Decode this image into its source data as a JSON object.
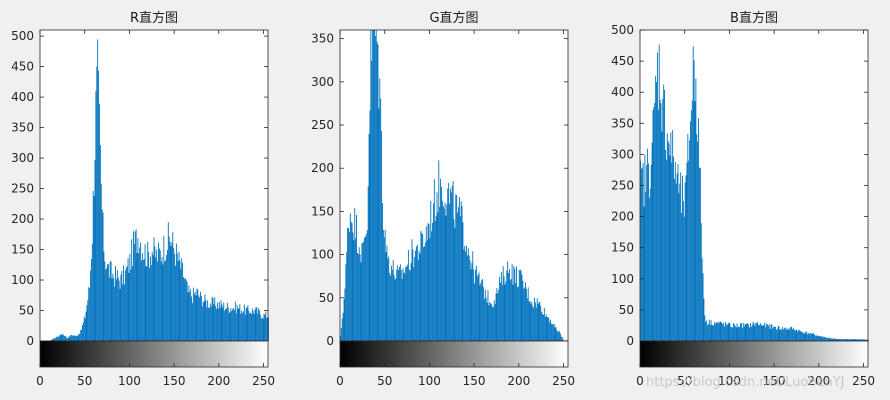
{
  "chart_data": [
    {
      "type": "bar",
      "title": "R直方图",
      "xlabel": "",
      "ylabel": "",
      "xlim": [
        0,
        255
      ],
      "ylim": [
        0,
        510
      ],
      "yticks": [
        0,
        50,
        100,
        150,
        200,
        250,
        300,
        350,
        400,
        450,
        500
      ],
      "xticks": [
        0,
        50,
        100,
        150,
        200,
        250
      ],
      "bar_color": "#0072BD",
      "bins": [
        0,
        10,
        20,
        25,
        30,
        35,
        40,
        45,
        50,
        55,
        58,
        60,
        62,
        64,
        66,
        68,
        70,
        72,
        75,
        80,
        85,
        90,
        95,
        100,
        105,
        110,
        115,
        120,
        125,
        130,
        135,
        140,
        145,
        150,
        155,
        160,
        165,
        170,
        175,
        180,
        185,
        190,
        200,
        210,
        220,
        230,
        240,
        250,
        255
      ],
      "values": [
        0,
        0,
        8,
        12,
        5,
        10,
        8,
        15,
        40,
        90,
        180,
        280,
        380,
        430,
        350,
        250,
        180,
        140,
        120,
        110,
        105,
        100,
        110,
        130,
        160,
        175,
        150,
        140,
        150,
        140,
        145,
        160,
        170,
        150,
        130,
        110,
        80,
        75,
        80,
        70,
        65,
        62,
        60,
        55,
        55,
        50,
        50,
        42,
        42
      ]
    },
    {
      "type": "bar",
      "title": "G直方图",
      "xlabel": "",
      "ylabel": "",
      "xlim": [
        0,
        255
      ],
      "ylim": [
        0,
        360
      ],
      "yticks": [
        0,
        50,
        100,
        150,
        200,
        250,
        300,
        350
      ],
      "xticks": [
        0,
        50,
        100,
        150,
        200,
        250
      ],
      "bar_color": "#0072BD",
      "bins": [
        0,
        5,
        8,
        10,
        15,
        20,
        25,
        30,
        33,
        36,
        40,
        44,
        48,
        52,
        56,
        60,
        65,
        70,
        75,
        80,
        85,
        90,
        95,
        100,
        105,
        110,
        115,
        120,
        125,
        130,
        135,
        140,
        145,
        150,
        155,
        160,
        165,
        170,
        175,
        180,
        185,
        190,
        195,
        200,
        205,
        210,
        215,
        220,
        225,
        230,
        235,
        240,
        245,
        250,
        255
      ],
      "values": [
        5,
        60,
        120,
        150,
        140,
        120,
        100,
        140,
        300,
        360,
        360,
        300,
        150,
        100,
        90,
        80,
        75,
        80,
        90,
        100,
        105,
        110,
        120,
        140,
        160,
        180,
        180,
        170,
        160,
        150,
        140,
        120,
        100,
        80,
        70,
        60,
        50,
        45,
        55,
        70,
        80,
        85,
        75,
        75,
        65,
        55,
        45,
        45,
        40,
        30,
        25,
        15,
        10,
        0,
        0
      ]
    },
    {
      "type": "bar",
      "title": "B直方图",
      "xlabel": "",
      "ylabel": "",
      "xlim": [
        0,
        255
      ],
      "ylim": [
        0,
        500
      ],
      "yticks": [
        0,
        50,
        100,
        150,
        200,
        250,
        300,
        350,
        400,
        450,
        500
      ],
      "xticks": [
        0,
        50,
        100,
        150,
        200,
        250
      ],
      "bar_color": "#0072BD",
      "bins": [
        0,
        5,
        10,
        15,
        18,
        20,
        22,
        25,
        28,
        30,
        35,
        40,
        45,
        50,
        52,
        55,
        58,
        60,
        62,
        65,
        68,
        70,
        72,
        75,
        80,
        90,
        100,
        110,
        120,
        130,
        140,
        150,
        160,
        170,
        180,
        190,
        200,
        210,
        220,
        230,
        240,
        255
      ],
      "values": [
        250,
        260,
        280,
        340,
        420,
        440,
        430,
        380,
        350,
        340,
        300,
        270,
        230,
        220,
        260,
        340,
        410,
        450,
        430,
        320,
        200,
        100,
        40,
        30,
        30,
        28,
        25,
        25,
        25,
        28,
        25,
        22,
        20,
        20,
        15,
        12,
        8,
        5,
        3,
        3,
        3,
        2
      ]
    }
  ],
  "watermark": "https://blog.csdn.net/LuohenYJ"
}
